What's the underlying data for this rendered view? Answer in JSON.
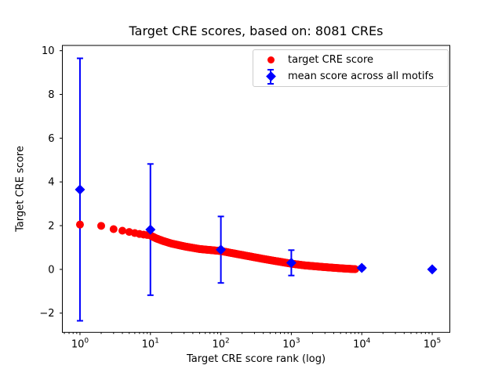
{
  "title": "Target CRE scores, based on: 8081 CREs",
  "legend": {
    "items": [
      {
        "label": "target CRE score",
        "marker": "circle",
        "color": "#ff0000"
      },
      {
        "label": "mean score across all motifs",
        "marker": "diamond-errorbar",
        "color": "#0000ff"
      }
    ]
  },
  "colors": {
    "red_series": "#ff0000",
    "blue_series": "#0000ff",
    "axis": "#000000",
    "legend_border": "#cccccc",
    "background": "#ffffff"
  },
  "chart_data": {
    "type": "scatter",
    "title": "Target CRE scores, based on: 8081 CREs",
    "xlabel": "Target CRE score rank (log)",
    "ylabel": "Target CRE score",
    "x_scale": "log10",
    "xlim_log10": [
      -0.25,
      5.25
    ],
    "ylim": [
      -2.88,
      10.24
    ],
    "grid": false,
    "legend_position": "upper right",
    "x_major_tick_exponents": [
      0,
      1,
      2,
      3,
      4,
      5
    ],
    "y_ticks": [
      -2,
      0,
      2,
      4,
      6,
      8,
      10
    ],
    "y_tick_labels": [
      "−2",
      "0",
      "2",
      "4",
      "6",
      "8",
      "10"
    ],
    "n_cres": 8081,
    "series": [
      {
        "name": "target CRE score",
        "marker": "circle",
        "color": "#ff0000",
        "description": "dense curve of 8081 ranked CRE scores; anchors sampled as [log10(rank), score]",
        "anchors_log10x_y": [
          [
            0.0,
            2.05
          ],
          [
            0.301,
            1.99
          ],
          [
            0.477,
            1.84
          ],
          [
            0.602,
            1.77
          ],
          [
            0.699,
            1.71
          ],
          [
            0.778,
            1.66
          ],
          [
            0.845,
            1.62
          ],
          [
            0.903,
            1.59
          ],
          [
            0.954,
            1.57
          ],
          [
            1.0,
            1.55
          ],
          [
            1.08,
            1.42
          ],
          [
            1.18,
            1.3
          ],
          [
            1.3,
            1.18
          ],
          [
            1.5,
            1.04
          ],
          [
            1.7,
            0.93
          ],
          [
            2.0,
            0.84
          ],
          [
            2.2,
            0.72
          ],
          [
            2.4,
            0.6
          ],
          [
            2.6,
            0.48
          ],
          [
            2.8,
            0.37
          ],
          [
            3.0,
            0.26
          ],
          [
            3.2,
            0.18
          ],
          [
            3.45,
            0.11
          ],
          [
            3.7,
            0.05
          ],
          [
            3.907,
            0.01
          ]
        ],
        "rank_range": [
          1,
          8081
        ]
      },
      {
        "name": "mean score across all motifs",
        "marker": "diamond",
        "color": "#0000ff",
        "x_ranks": [
          1,
          10,
          100,
          1000,
          10000,
          100000
        ],
        "means": [
          3.65,
          1.82,
          0.9,
          0.3,
          0.07,
          0.0
        ],
        "errors": [
          6.0,
          3.0,
          1.52,
          0.58,
          0.08,
          0.05
        ]
      }
    ]
  }
}
